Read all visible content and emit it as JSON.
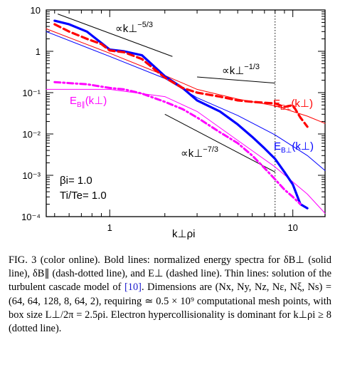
{
  "chart_data": {
    "type": "line",
    "xscale": "log",
    "yscale": "log",
    "xlim": [
      0.45,
      15
    ],
    "ylim": [
      0.0001,
      10
    ],
    "x_ticks": [
      "1",
      "10"
    ],
    "y_ticks": [
      "10⁻⁴",
      "10⁻³",
      "10⁻²",
      "10⁻¹",
      "1",
      "10"
    ],
    "xlabel": "k⊥ρi",
    "dissipation_line_x": 8,
    "params": {
      "beta_i": "βi= 1.0",
      "ti_te": "Ti/Te= 1.0"
    },
    "series": [
      {
        "name": "E_B⊥(k⊥)",
        "color": "#0000ff",
        "style": "bold-solid",
        "x": [
          0.5,
          0.6,
          0.75,
          0.9,
          1.0,
          1.2,
          1.5,
          2.0,
          2.5,
          3.0,
          4.0,
          5.0,
          6.0,
          7.0,
          8.0,
          9.0,
          10.0,
          11.0,
          12.0
        ],
        "y": [
          5.5,
          4.5,
          3.0,
          1.6,
          1.1,
          1.0,
          0.8,
          0.25,
          0.13,
          0.065,
          0.035,
          0.017,
          0.0085,
          0.0045,
          0.0025,
          0.0012,
          0.0006,
          0.0002,
          0.00016
        ]
      },
      {
        "name": "E_E⊥(k⊥)",
        "color": "#ff0000",
        "style": "bold-dashed",
        "x": [
          0.5,
          0.6,
          0.75,
          0.9,
          1.0,
          1.2,
          1.5,
          2.0,
          2.5,
          3.0,
          4.0,
          5.0,
          6.0,
          7.0,
          8.0,
          9.0,
          10.0,
          11.0,
          12.0
        ],
        "y": [
          4.5,
          3.0,
          2.0,
          1.5,
          1.05,
          0.95,
          0.65,
          0.23,
          0.13,
          0.1,
          0.08,
          0.065,
          0.06,
          0.057,
          0.055,
          0.045,
          0.05,
          0.025,
          0.015
        ]
      },
      {
        "name": "E_B∥(k⊥)",
        "color": "#ff00ff",
        "style": "bold-dashdot",
        "x": [
          0.5,
          0.6,
          0.75,
          0.9,
          1.0,
          1.2,
          1.5,
          2.0,
          2.5,
          3.0,
          4.0,
          5.0,
          6.0,
          7.0,
          8.0,
          9.0,
          10.0,
          11.0
        ],
        "y": [
          0.18,
          0.17,
          0.16,
          0.14,
          0.13,
          0.12,
          0.095,
          0.06,
          0.04,
          0.025,
          0.011,
          0.006,
          0.003,
          0.0015,
          0.0008,
          0.00045,
          0.0003,
          0.0002
        ]
      },
      {
        "name": "model E_B⊥",
        "color": "#0000ff",
        "style": "thin",
        "x": [
          0.45,
          1.0,
          2.0,
          3.0,
          5.0,
          8.0,
          12.0,
          15.0
        ],
        "y": [
          3.0,
          0.75,
          0.22,
          0.075,
          0.028,
          0.0095,
          0.003,
          0.0013
        ]
      },
      {
        "name": "model E_E⊥",
        "color": "#ff0000",
        "style": "thin",
        "x": [
          0.45,
          1.0,
          2.0,
          2.5,
          3.0,
          5.0,
          8.0,
          12.0,
          15.0
        ],
        "y": [
          3.5,
          0.9,
          0.26,
          0.17,
          0.12,
          0.07,
          0.048,
          0.027,
          0.018
        ]
      },
      {
        "name": "model E_B∥",
        "color": "#ff00ff",
        "style": "thin",
        "x": [
          0.45,
          1.0,
          2.0,
          3.0,
          5.0,
          8.0,
          12.0,
          15.0
        ],
        "y": [
          0.12,
          0.12,
          0.08,
          0.035,
          0.007,
          0.0016,
          0.00035,
          0.00012
        ]
      }
    ],
    "slope_guides": [
      {
        "label": "∝k⊥",
        "exponent": "−5/3",
        "x": [
          0.52,
          2.2
        ],
        "y": [
          8.0,
          0.75
        ]
      },
      {
        "label": "∝k⊥",
        "exponent": "−1/3",
        "x": [
          3.0,
          8.0
        ],
        "y": [
          0.24,
          0.17
        ]
      },
      {
        "label": "∝k⊥",
        "exponent": "−7/3",
        "x": [
          2.0,
          8.0
        ],
        "y": [
          0.03,
          0.0012
        ]
      }
    ],
    "curve_labels": [
      {
        "text": "E",
        "sub": "E⊥",
        "tail": "(k⊥)",
        "color": "#ff0000"
      },
      {
        "text": "E",
        "sub": "B⊥",
        "tail": "(k⊥)",
        "color": "#0000ff"
      },
      {
        "text": "E",
        "sub": "B∥",
        "tail": "(k⊥)",
        "color": "#ff00ff"
      }
    ]
  },
  "caption": {
    "part1": "FIG. 3 (color online).   Bold lines: normalized energy spectra for δB⊥ (solid line), δB∥ (dash-dotted line), and E⊥ (dashed line). Thin lines: solution of the turbulent cascade model of ",
    "ref": "[10]",
    "part2": ". Dimensions are (Nx, Ny, Nz, Nε, Nξ, Ns) = (64, 64, 128, 8, 64, 2), requiring ≃ 0.5 × 10⁹ computational mesh points, with box size L⊥/2π = 2.5ρi. Electron hypercollisionality is dominant for k⊥ρi ≥ 8 (dotted line)."
  }
}
